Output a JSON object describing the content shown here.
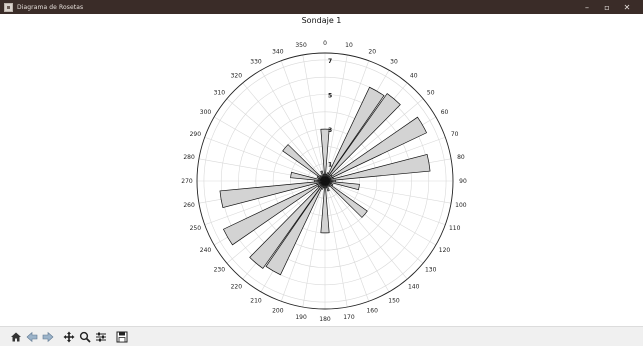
{
  "window": {
    "title": "Diagrama de Rosetas",
    "controls": {
      "minimize": "–",
      "maximize": "▫",
      "close": "✕"
    }
  },
  "chart_data": {
    "type": "polar-bar",
    "title": "Sondaje 1",
    "theta_direction": "clockwise",
    "theta_zero": "north",
    "angle_labels": [
      0,
      10,
      20,
      30,
      40,
      50,
      60,
      70,
      80,
      90,
      100,
      110,
      120,
      130,
      140,
      150,
      160,
      170,
      180,
      190,
      200,
      210,
      220,
      230,
      240,
      250,
      260,
      270,
      280,
      290,
      300,
      310,
      320,
      330,
      340,
      350
    ],
    "angle_label_texts": [
      "0",
      "10",
      "20",
      "30",
      "40",
      "50",
      "60",
      "70",
      "80",
      "90",
      "100",
      "110",
      "120",
      "130",
      "140",
      "150",
      "160",
      "170",
      "180",
      "190",
      "200",
      "210",
      "220",
      "230",
      "240",
      "250",
      "260",
      "270",
      "280",
      "290",
      "300",
      "310",
      "320",
      "330",
      "340",
      "350"
    ],
    "radial_ticks": [
      "1",
      "3",
      "5",
      "7"
    ],
    "r_max": 7.4,
    "bin_width_deg": 10,
    "bins": [
      {
        "center": 0,
        "value": 3.0
      },
      {
        "center": 10,
        "value": 0.4
      },
      {
        "center": 20,
        "value": 0.5
      },
      {
        "center": 30,
        "value": 6.0
      },
      {
        "center": 40,
        "value": 6.2
      },
      {
        "center": 50,
        "value": 0.5
      },
      {
        "center": 60,
        "value": 6.5
      },
      {
        "center": 70,
        "value": 0.5
      },
      {
        "center": 80,
        "value": 6.1
      },
      {
        "center": 90,
        "value": 0.6
      },
      {
        "center": 100,
        "value": 2.0
      },
      {
        "center": 110,
        "value": 0.4
      },
      {
        "center": 120,
        "value": 0.5
      },
      {
        "center": 130,
        "value": 3.0
      },
      {
        "center": 140,
        "value": 0.4
      },
      {
        "center": 150,
        "value": 0.3
      },
      {
        "center": 160,
        "value": 0.6
      },
      {
        "center": 170,
        "value": 0.4
      },
      {
        "center": 180,
        "value": 3.0
      },
      {
        "center": 190,
        "value": 0.4
      },
      {
        "center": 200,
        "value": 0.5
      },
      {
        "center": 210,
        "value": 6.0
      },
      {
        "center": 220,
        "value": 6.2
      },
      {
        "center": 230,
        "value": 0.5
      },
      {
        "center": 240,
        "value": 6.5
      },
      {
        "center": 250,
        "value": 0.5
      },
      {
        "center": 260,
        "value": 6.1
      },
      {
        "center": 270,
        "value": 0.6
      },
      {
        "center": 280,
        "value": 2.0
      },
      {
        "center": 290,
        "value": 0.4
      },
      {
        "center": 300,
        "value": 0.5
      },
      {
        "center": 310,
        "value": 3.0
      },
      {
        "center": 320,
        "value": 0.4
      },
      {
        "center": 330,
        "value": 0.3
      },
      {
        "center": 340,
        "value": 0.6
      },
      {
        "center": 350,
        "value": 0.4
      }
    ],
    "bar_fill": "#d3d3d3",
    "bar_edge": "#111111",
    "grid": true
  },
  "toolbar": {
    "buttons": [
      {
        "name": "home-button",
        "icon": "home-icon"
      },
      {
        "name": "back-button",
        "icon": "arrow-left-icon"
      },
      {
        "name": "forward-button",
        "icon": "arrow-right-icon"
      },
      {
        "name": "pan-button",
        "icon": "move-icon"
      },
      {
        "name": "zoom-button",
        "icon": "magnifier-icon"
      },
      {
        "name": "configure-subplots-button",
        "icon": "sliders-icon"
      },
      {
        "name": "save-button",
        "icon": "floppy-icon"
      }
    ]
  }
}
